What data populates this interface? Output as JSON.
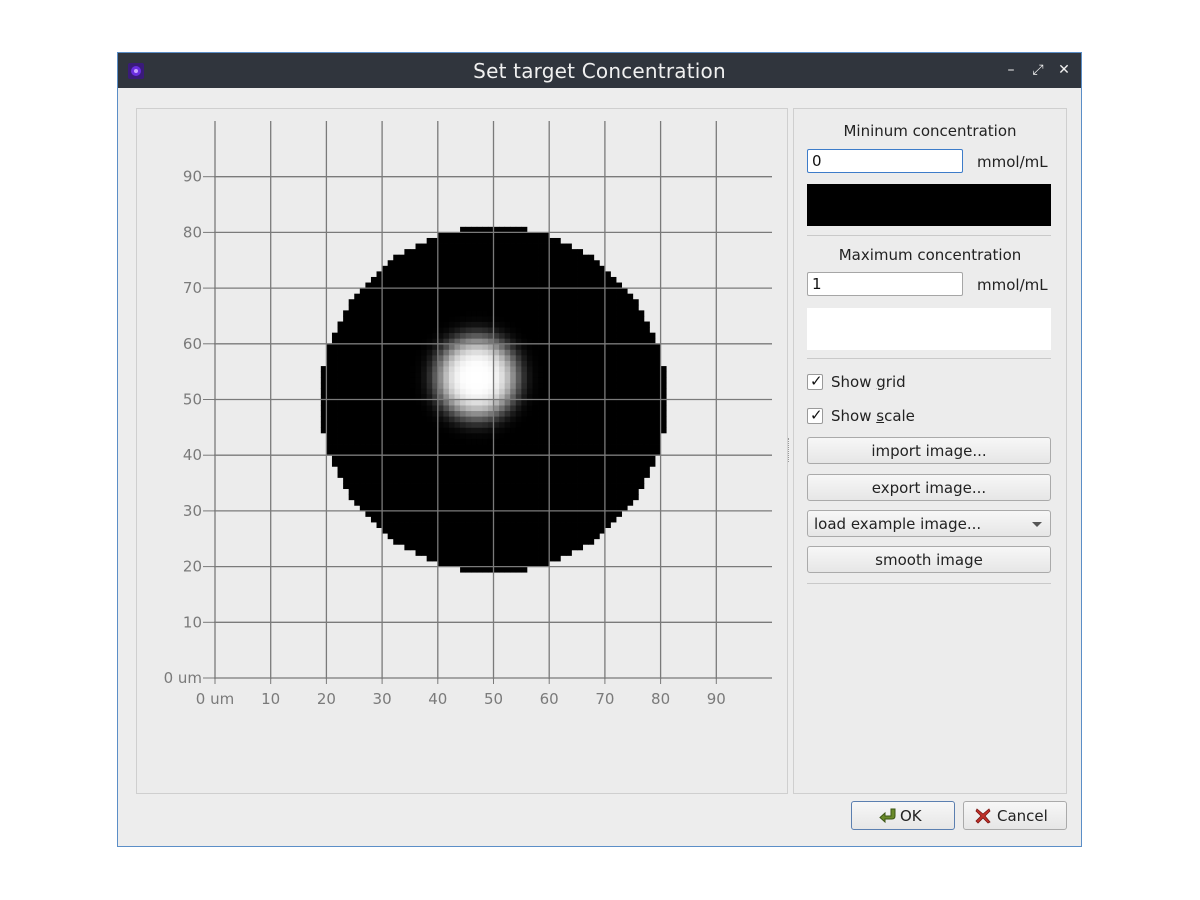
{
  "window": {
    "title": "Set target Concentration",
    "controls": {
      "minimize": "–",
      "maximize": "⤢",
      "close": "✕"
    }
  },
  "plot": {
    "x_ticks": [
      "0 um",
      "10",
      "20",
      "30",
      "40",
      "50",
      "60",
      "70",
      "80",
      "90"
    ],
    "y_ticks": [
      "0 um",
      "10",
      "20",
      "30",
      "40",
      "50",
      "60",
      "70",
      "80",
      "90"
    ],
    "show_grid": true,
    "image": {
      "background": "#ececec",
      "region_shape": "circle",
      "region_center": [
        50,
        50
      ],
      "region_radius": 31,
      "spot_center": [
        47,
        54
      ],
      "spot_radius": 12,
      "min_color": "#000000",
      "max_color": "#ffffff"
    }
  },
  "side": {
    "min_label": "Mininum concentration",
    "min_value": "0",
    "min_unit": "mmol/mL",
    "min_color": "#000000",
    "max_label": "Maximum concentration",
    "max_value": "1",
    "max_unit": "mmol/mL",
    "max_color": "#ffffff",
    "show_grid": {
      "before": "Show ",
      "accel": "g",
      "after": "rid",
      "checked": true
    },
    "show_scale": {
      "before": "Show ",
      "accel": "s",
      "after": "cale",
      "checked": true
    },
    "import_button": "import image...",
    "export_button": "export image...",
    "example_combo": "load example image...",
    "smooth_button": "smooth image"
  },
  "footer": {
    "ok": "OK",
    "cancel": "Cancel"
  },
  "icons": {
    "app": "app-icon",
    "ok": "ok-arrow-icon",
    "cancel": "cancel-x-icon"
  }
}
